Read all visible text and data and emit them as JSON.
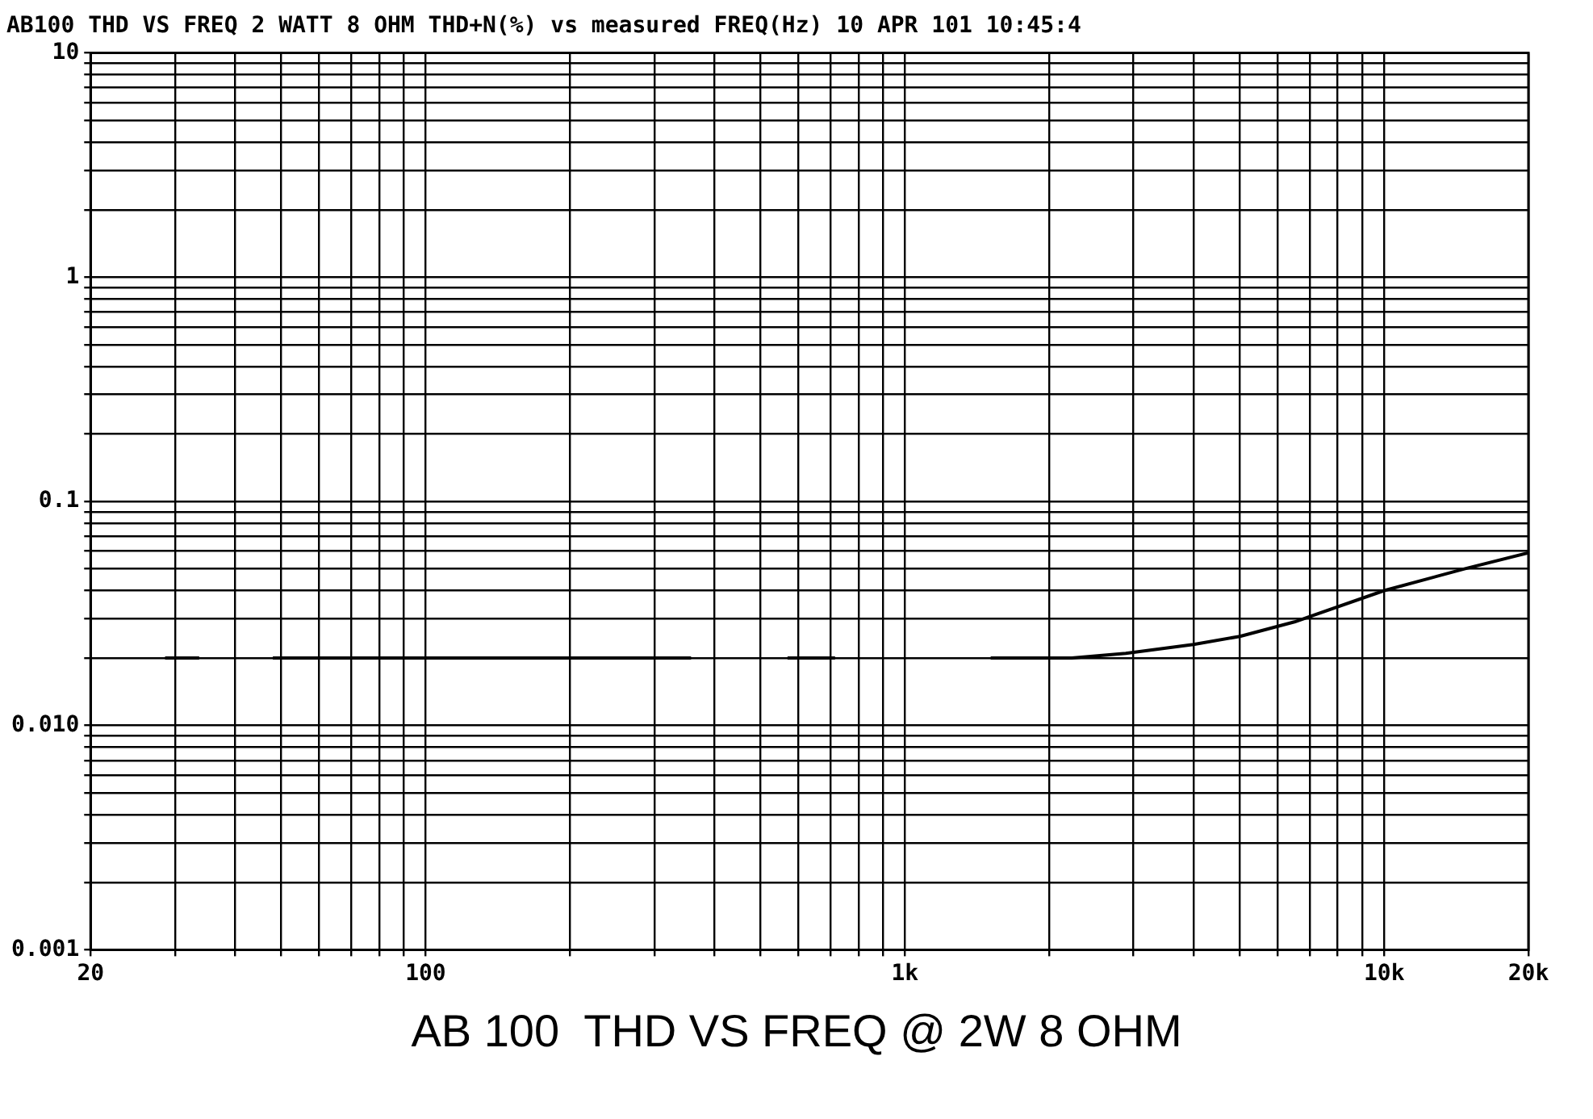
{
  "chart_data": {
    "type": "line",
    "title": "AB100 THD VS FREQ 2 WATT 8 OHM THD+N(%) vs measured FREQ(Hz) 10 APR 101 10:45:4",
    "annotations": [
      "AB 100  THD VS FREQ @ 2W 8 OHM"
    ],
    "log": "xy",
    "grid": true,
    "legend": false,
    "xlim": [
      20,
      20000
    ],
    "ylim": [
      0.001,
      10
    ],
    "xticks": [
      20,
      {
        "value": 30,
        "label": null
      },
      {
        "value": 40,
        "label": null
      },
      {
        "value": 50,
        "label": null
      },
      {
        "value": 60,
        "label": null
      },
      {
        "value": 70,
        "label": null
      },
      {
        "value": 80,
        "label": null
      },
      {
        "value": 90,
        "label": null
      },
      100,
      {
        "value": 200,
        "label": null
      },
      {
        "value": 300,
        "label": null
      },
      {
        "value": 400,
        "label": null
      },
      {
        "value": 500,
        "label": null
      },
      {
        "value": 600,
        "label": null
      },
      {
        "value": 700,
        "label": null
      },
      {
        "value": 800,
        "label": null
      },
      {
        "value": 900,
        "label": null
      },
      {
        "value": 1000,
        "label": "1k"
      },
      {
        "value": 2000,
        "label": null
      },
      {
        "value": 3000,
        "label": null
      },
      {
        "value": 4000,
        "label": null
      },
      {
        "value": 5000,
        "label": null
      },
      {
        "value": 6000,
        "label": null
      },
      {
        "value": 7000,
        "label": null
      },
      {
        "value": 8000,
        "label": null
      },
      {
        "value": 9000,
        "label": null
      },
      {
        "value": 10000,
        "label": "10k"
      },
      {
        "value": 20000,
        "label": "20k"
      }
    ],
    "yticks": [
      {
        "value": 0.001,
        "label": "0.001"
      },
      {
        "value": 0.002,
        "label": null
      },
      {
        "value": 0.003,
        "label": null
      },
      {
        "value": 0.004,
        "label": null
      },
      {
        "value": 0.005,
        "label": null
      },
      {
        "value": 0.006,
        "label": null
      },
      {
        "value": 0.007,
        "label": null
      },
      {
        "value": 0.008,
        "label": null
      },
      {
        "value": 0.009,
        "label": null
      },
      {
        "value": 0.01,
        "label": "0.010"
      },
      {
        "value": 0.02,
        "label": null
      },
      {
        "value": 0.03,
        "label": null
      },
      {
        "value": 0.04,
        "label": null
      },
      {
        "value": 0.05,
        "label": null
      },
      {
        "value": 0.06,
        "label": null
      },
      {
        "value": 0.07,
        "label": null
      },
      {
        "value": 0.08,
        "label": null
      },
      {
        "value": 0.09,
        "label": null
      },
      0.1,
      {
        "value": 0.2,
        "label": null
      },
      {
        "value": 0.3,
        "label": null
      },
      {
        "value": 0.4,
        "label": null
      },
      {
        "value": 0.5,
        "label": null
      },
      {
        "value": 0.6,
        "label": null
      },
      {
        "value": 0.7,
        "label": null
      },
      {
        "value": 0.8,
        "label": null
      },
      {
        "value": 0.9,
        "label": null
      },
      1,
      {
        "value": 2,
        "label": null
      },
      {
        "value": 3,
        "label": null
      },
      {
        "value": 4,
        "label": null
      },
      {
        "value": 5,
        "label": null
      },
      {
        "value": 6,
        "label": null
      },
      {
        "value": 7,
        "label": null
      },
      {
        "value": 8,
        "label": null
      },
      {
        "value": 9,
        "label": null
      },
      10
    ],
    "series": [
      {
        "color": "#000000",
        "x": [
          28.6,
          33.7,
          40,
          48,
          100,
          200,
          358,
          450,
          569,
          715,
          1000,
          1510,
          2230,
          2890,
          4000,
          5000,
          6500,
          10000,
          14700,
          20000
        ],
        "values": [
          0.02,
          0.02,
          null,
          0.02,
          0.02,
          0.02,
          0.02,
          null,
          0.02,
          0.02,
          null,
          0.02,
          0.02,
          0.021,
          0.023,
          0.025,
          0.029,
          0.04,
          0.05,
          0.059
        ]
      }
    ]
  }
}
